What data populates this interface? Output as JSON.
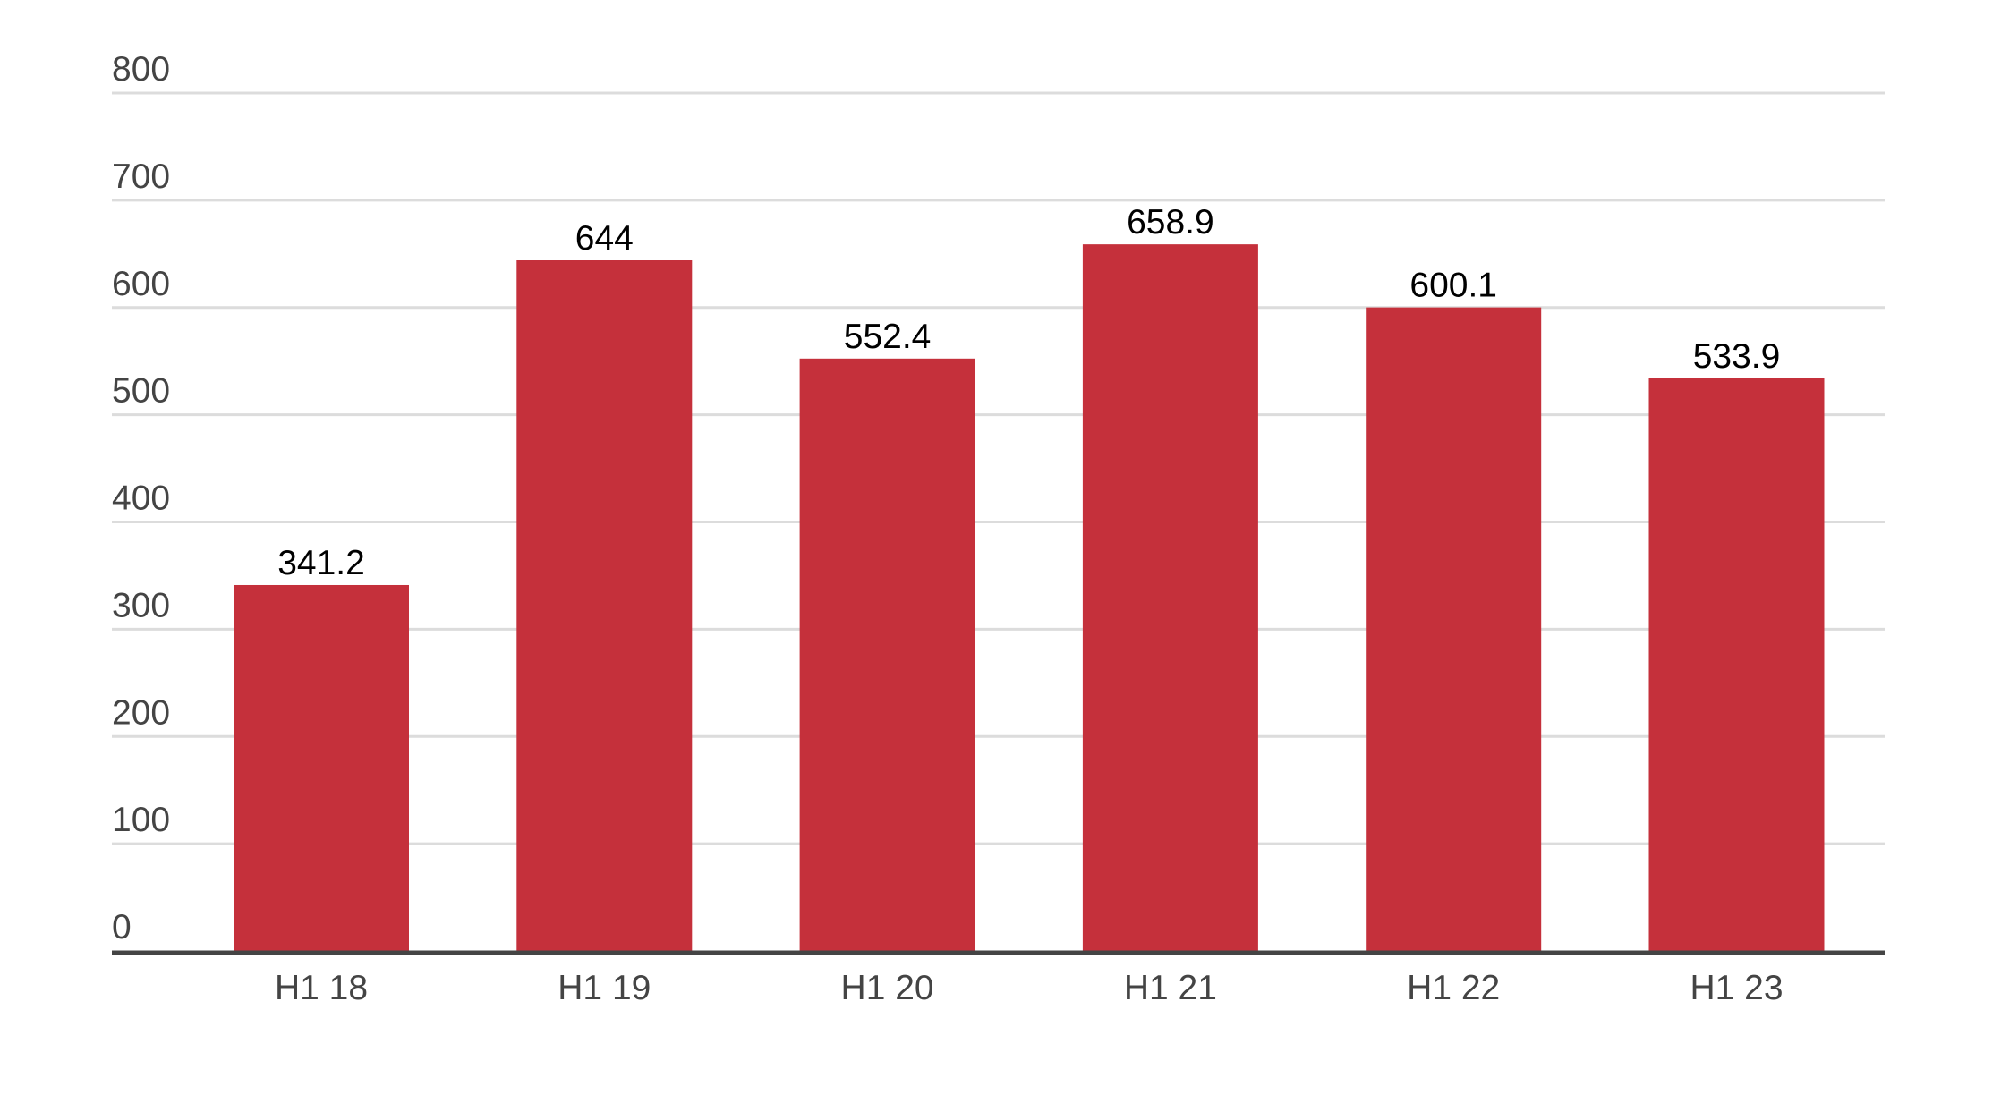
{
  "chart_data": {
    "type": "bar",
    "title": "",
    "xlabel": "",
    "ylabel": "",
    "categories": [
      "H1 18",
      "H1 19",
      "H1 20",
      "H1 21",
      "H1 22",
      "H1 23"
    ],
    "values": [
      341.2,
      644,
      552.4,
      658.9,
      600.1,
      533.9
    ],
    "value_labels": [
      "341.2",
      "644",
      "552.4",
      "658.9",
      "600.1",
      "533.9"
    ],
    "ylim": [
      0,
      800
    ],
    "yticks": [
      0,
      100,
      200,
      300,
      400,
      500,
      600,
      700,
      800
    ],
    "grid": true,
    "legend": "none",
    "colors": {
      "bar": "#c5303b",
      "grid": "#dcdcdc",
      "axis": "#444444",
      "tick_text": "#444444",
      "value_text": "#000000"
    }
  }
}
